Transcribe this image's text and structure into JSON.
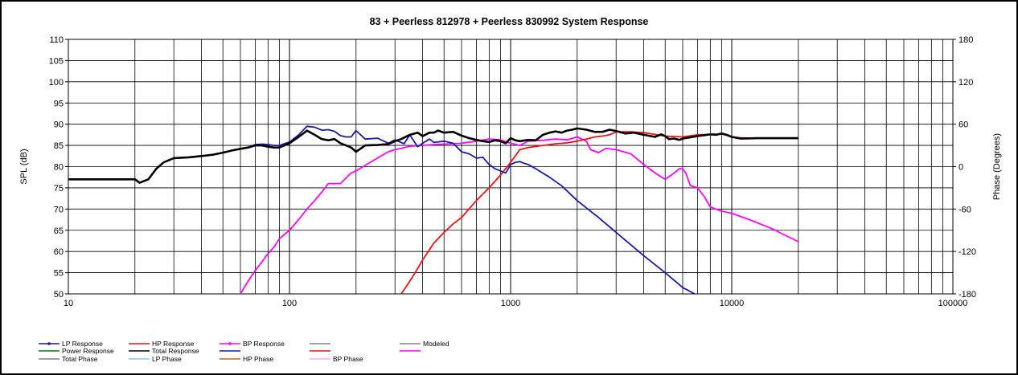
{
  "chart_data": {
    "type": "line",
    "title": "83 + Peerless  812978  + Peerless  830992   System Response",
    "ylabel": "SPL (dB)",
    "y2label": "Phase (Degrees)",
    "xscale": "log",
    "xlim": [
      10,
      100000
    ],
    "ylim": [
      50,
      110
    ],
    "y2lim": [
      -180,
      180
    ],
    "xticks": [
      "10",
      "100",
      "1000",
      "10000",
      "100000"
    ],
    "yticks": [
      "50",
      "55",
      "60",
      "65",
      "70",
      "75",
      "80",
      "85",
      "90",
      "95",
      "100",
      "105",
      "110"
    ],
    "y2ticks": [
      "-180",
      "-120",
      "-60",
      "0",
      "60",
      "120",
      "180"
    ],
    "grid": true,
    "legend_position": "bottom",
    "legend": [
      {
        "name": "LP Response",
        "color": "#1a1aa6",
        "marker": true
      },
      {
        "name": "HP Response",
        "color": "#ee1111",
        "marker": false
      },
      {
        "name": "BP Response",
        "color": "#ff00ff",
        "marker": true
      },
      {
        "name": "",
        "color": "#808080",
        "marker": false
      },
      {
        "name": "Modeled",
        "color": "#808080",
        "marker": false
      },
      {
        "name": "Power Response",
        "color": "#008000",
        "marker": false
      },
      {
        "name": "Total Response",
        "color": "#000000",
        "marker": false
      },
      {
        "name": "",
        "color": "#1a1aa6",
        "marker": false
      },
      {
        "name": "",
        "color": "#ee1111",
        "marker": false
      },
      {
        "name": "",
        "color": "#ff00ff",
        "marker": false
      },
      {
        "name": "Total Phase",
        "color": "#808080",
        "marker": false
      },
      {
        "name": "LP Phase",
        "color": "#87c8f0",
        "marker": false
      },
      {
        "name": "HP Phase",
        "color": "#c86414",
        "marker": false
      },
      {
        "name": "BP Phase",
        "color": "#ffaaff",
        "marker": false
      }
    ],
    "series": [
      {
        "name": "Total Response",
        "color": "#000000",
        "width": 2.6,
        "x": [
          10,
          20,
          21,
          23,
          25,
          27,
          30,
          35,
          40,
          45,
          50,
          55,
          60,
          65,
          70,
          75,
          80,
          85,
          90,
          100,
          110,
          120,
          130,
          140,
          150,
          160,
          170,
          180,
          190,
          200,
          220,
          250,
          280,
          300,
          320,
          350,
          380,
          400,
          430,
          450,
          470,
          500,
          550,
          600,
          650,
          700,
          750,
          800,
          850,
          900,
          950,
          1000,
          1050,
          1100,
          1200,
          1300,
          1400,
          1500,
          1600,
          1700,
          1800,
          1900,
          2000,
          2200,
          2400,
          2600,
          2800,
          3000,
          3300,
          3600,
          4000,
          4500,
          4800,
          5000,
          5200,
          5500,
          5800,
          6000,
          6500,
          7000,
          7500,
          8000,
          8500,
          9000,
          9500,
          10000,
          11000,
          13000,
          15000,
          17000,
          20000
        ],
        "y": [
          77,
          77,
          76.2,
          77,
          79.5,
          81,
          82,
          82.2,
          82.5,
          82.8,
          83.3,
          83.8,
          84.2,
          84.5,
          85,
          85,
          84.7,
          84.5,
          84.5,
          85.5,
          87,
          88.5,
          87.5,
          86.5,
          86.2,
          86.5,
          85.5,
          85,
          84.5,
          83.5,
          85,
          85.1,
          85.3,
          86,
          86.5,
          87.5,
          88,
          87.2,
          88,
          88,
          88.5,
          88,
          88.2,
          87.3,
          86.7,
          86.3,
          86,
          85.8,
          86.2,
          86,
          85.5,
          86.7,
          86.2,
          86,
          86.3,
          86.2,
          87.5,
          88,
          88.3,
          88,
          88.5,
          88.7,
          89,
          88.7,
          88.2,
          88.2,
          88.7,
          88.4,
          87.8,
          88,
          87.5,
          87,
          87.6,
          87.2,
          86.5,
          86.6,
          86.3,
          86.6,
          86.9,
          87.2,
          87.4,
          87.6,
          87.5,
          87.8,
          87.5,
          87,
          86.6,
          86.7,
          86.7,
          86.7,
          86.7
        ]
      },
      {
        "name": "LP Response",
        "color": "#1a1aa6",
        "width": 1.8,
        "x": [
          10,
          20,
          21,
          23,
          25,
          27,
          30,
          35,
          40,
          45,
          50,
          55,
          60,
          65,
          70,
          75,
          80,
          85,
          90,
          100,
          110,
          120,
          130,
          140,
          150,
          160,
          170,
          180,
          190,
          200,
          220,
          250,
          280,
          300,
          330,
          350,
          380,
          400,
          430,
          450,
          500,
          550,
          600,
          650,
          700,
          750,
          800,
          850,
          900,
          950,
          1000,
          1050,
          1100,
          1150,
          1200,
          1300,
          1500,
          1700,
          2000,
          2500,
          3000,
          4000,
          5000,
          6000,
          6800
        ],
        "y": [
          77,
          77,
          76.2,
          77,
          79.5,
          81,
          82,
          82.2,
          82.5,
          82.8,
          83.3,
          83.8,
          84.2,
          84.5,
          85.2,
          85.3,
          85.2,
          85,
          85,
          85.8,
          87.5,
          89.5,
          89.3,
          88.6,
          88.7,
          88.3,
          87.3,
          87,
          87,
          88.5,
          86.5,
          86.7,
          85.5,
          86.3,
          85.4,
          87.5,
          84.7,
          85.5,
          86.5,
          85.7,
          86,
          85.5,
          83.5,
          83,
          82,
          82.2,
          80.5,
          79.5,
          79,
          78.5,
          80.5,
          81,
          81.2,
          80.8,
          80.5,
          79.5,
          77.5,
          75.5,
          72,
          68,
          64.5,
          59,
          55,
          51.5,
          50
        ]
      },
      {
        "name": "HP Response",
        "color": "#ee1111",
        "width": 1.8,
        "x": [
          320,
          340,
          370,
          400,
          450,
          500,
          550,
          600,
          700,
          800,
          900,
          1000,
          1100,
          1200,
          1400,
          1600,
          1800,
          2000,
          2200,
          2400,
          2600,
          2800,
          3000,
          3500,
          4000,
          5000,
          6000,
          7000,
          8000,
          9000,
          10000,
          11000,
          13000
        ],
        "y": [
          50,
          52,
          55,
          58,
          62,
          64.5,
          66.5,
          68,
          72,
          75,
          78,
          81,
          84,
          84.5,
          85,
          85.4,
          85.6,
          86,
          86.5,
          87,
          87.2,
          87.5,
          88.2,
          88.2,
          88,
          87.2,
          87,
          87.5,
          87.6,
          87.7,
          87,
          86.8,
          86.7
        ]
      },
      {
        "name": "BP Response",
        "color": "#ff00ff",
        "width": 1.8,
        "x": [
          60,
          65,
          70,
          75,
          80,
          85,
          90,
          100,
          110,
          120,
          130,
          140,
          150,
          170,
          190,
          200,
          220,
          250,
          280,
          300,
          320,
          350,
          400,
          450,
          500,
          600,
          700,
          800,
          900,
          1000,
          1100,
          1200,
          1400,
          1600,
          1800,
          2000,
          2100,
          2200,
          2300,
          2500,
          2700,
          3000,
          3500,
          4000,
          4500,
          5000,
          5500,
          5800,
          6000,
          6200,
          6500,
          7000,
          7500,
          8000,
          9000,
          10000,
          12000,
          15000,
          20000
        ],
        "y": [
          50,
          53,
          55.5,
          57.5,
          59.5,
          61,
          63,
          65,
          67.5,
          70,
          72,
          74,
          76,
          76,
          78.5,
          79,
          80.3,
          82,
          83.5,
          84,
          84.3,
          84.8,
          85,
          85.2,
          85.3,
          85.5,
          86,
          86.5,
          86.3,
          85.5,
          85,
          86,
          86.2,
          86.5,
          86.3,
          87,
          86.5,
          86,
          84,
          83.3,
          84.3,
          84,
          83,
          80.5,
          78.5,
          77,
          78.5,
          79.5,
          79.5,
          78.5,
          75.5,
          75,
          73,
          70.5,
          69.5,
          69,
          67.5,
          65.5,
          62.3
        ]
      }
    ]
  }
}
